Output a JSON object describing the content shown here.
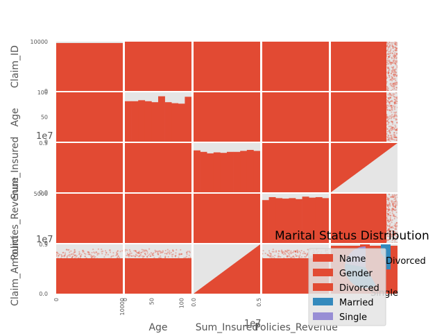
{
  "chart_data": {
    "type": "scatter",
    "variables": [
      "Claim_ID",
      "Age",
      "Sum_Insured",
      "Policies_Revenue",
      "Claim_Amount"
    ],
    "matrix": {
      "row_labels": [
        "Claim_ID",
        "Age",
        "Sum_Insured",
        "Policies_Revenue",
        "Claim_Amount"
      ],
      "col_labels": [
        "Claim_ID",
        "Age",
        "Sum_Insured",
        "Policies_Revenue",
        "Claim_Amount"
      ],
      "visible_x_labels": [
        "Age",
        "Sum_Insured",
        "Policies_Revenue"
      ],
      "x_tick_labels": [
        [
          "0",
          "10000"
        ],
        [
          "0",
          "50",
          "100"
        ],
        [
          "0.0",
          "0.5"
        ],
        [],
        []
      ],
      "y_tick_labels": [
        [
          "0",
          "10000"
        ],
        [
          "0",
          "50",
          "100"
        ],
        [
          "0.0",
          "0.5"
        ],
        [
          "0",
          "5000"
        ],
        [
          "0.0",
          "0.5"
        ]
      ],
      "y_offset_texts": [
        "1e7",
        "1e7"
      ],
      "x_offset_texts": [
        "1e7"
      ],
      "ranges": {
        "Claim_ID": [
          0,
          10000
        ],
        "Age": [
          18,
          100
        ],
        "Sum_Insured": [
          0,
          5000000
        ],
        "Policies_Revenue": [
          0,
          7000
        ],
        "Claim_Amount": [
          0,
          5000000
        ]
      },
      "diagonal_histograms": {
        "Age": [
          0.82,
          0.82,
          0.84,
          0.82,
          0.8,
          0.92,
          0.8,
          0.78,
          0.77,
          0.91
        ],
        "Sum_Insured": [
          0.85,
          0.82,
          0.79,
          0.81,
          0.8,
          0.82,
          0.82,
          0.84,
          0.86,
          0.84
        ],
        "Policies_Revenue": [
          0.87,
          0.93,
          0.91,
          0.9,
          0.91,
          0.89,
          0.94,
          0.92,
          0.93,
          0.91
        ]
      }
    },
    "pie": {
      "title": "Marital Status Distribution",
      "labels": [
        "Divorced",
        "Married",
        "Single"
      ],
      "colors": [
        "#E24A33",
        "#348ABD",
        "#988ED5"
      ]
    },
    "legend": {
      "placement": "lower-right",
      "entries": [
        {
          "label": "Name",
          "color": "#E24A33"
        },
        {
          "label": "Gender",
          "color": "#E24A33"
        },
        {
          "label": "Divorced",
          "color": "#E24A33"
        },
        {
          "label": "Married",
          "color": "#348ABD"
        },
        {
          "label": "Single",
          "color": "#988ED5"
        }
      ]
    },
    "bar_fragment": {
      "labels": [
        "Married",
        "Gender"
      ],
      "colors": [
        "#E24A33",
        "#348ABD"
      ]
    },
    "style": {
      "panel_bg": "#E5E5E5",
      "point_color": "#E24A33",
      "grid": true
    }
  }
}
